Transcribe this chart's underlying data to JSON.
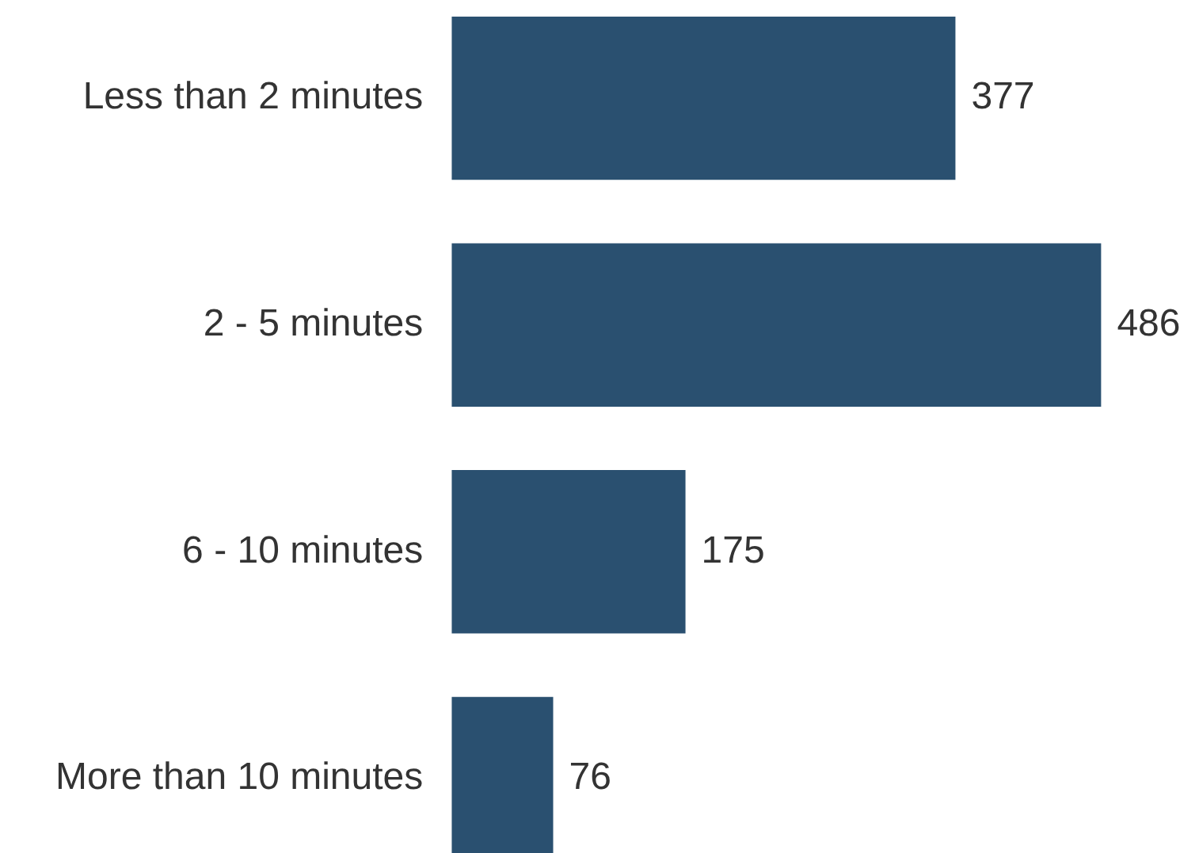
{
  "chart_data": {
    "type": "bar",
    "orientation": "horizontal",
    "categories": [
      "Less than 2 minutes",
      "2 - 5 minutes",
      "6 - 10 minutes",
      "More than 10 minutes"
    ],
    "values": [
      377,
      486,
      175,
      76
    ],
    "color": "#2a5070",
    "data_labels": true
  }
}
